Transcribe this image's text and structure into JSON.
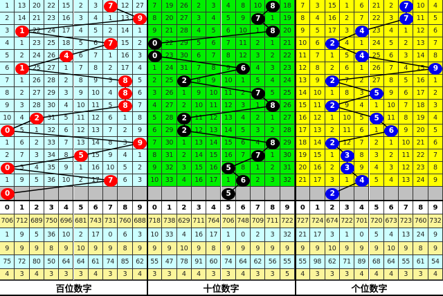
{
  "header_digits": [
    "0",
    "1",
    "2",
    "3",
    "4",
    "5",
    "6",
    "7",
    "8",
    "9"
  ],
  "panels": [
    {
      "label": "百位数字",
      "bg": "#ccffff",
      "ball_color": "#ff0000",
      "rows": [
        [
          1,
          13,
          20,
          22,
          15,
          2,
          3,
          7,
          12,
          27
        ],
        [
          2,
          14,
          21,
          23,
          16,
          3,
          4,
          1,
          13,
          9
        ],
        [
          3,
          1,
          22,
          24,
          17,
          4,
          5,
          2,
          14,
          1
        ],
        [
          4,
          1,
          23,
          25,
          18,
          5,
          6,
          7,
          15,
          2
        ],
        [
          5,
          2,
          24,
          26,
          4,
          6,
          7,
          1,
          16,
          3
        ],
        [
          6,
          1,
          25,
          27,
          1,
          7,
          8,
          2,
          17,
          4
        ],
        [
          7,
          1,
          26,
          28,
          2,
          8,
          9,
          3,
          8,
          5
        ],
        [
          8,
          2,
          27,
          29,
          3,
          9,
          10,
          4,
          8,
          6
        ],
        [
          9,
          3,
          28,
          30,
          4,
          10,
          11,
          5,
          8,
          7
        ],
        [
          10,
          4,
          2,
          31,
          5,
          11,
          12,
          6,
          1,
          8
        ],
        [
          0,
          5,
          1,
          32,
          6,
          12,
          13,
          7,
          2,
          9
        ],
        [
          1,
          6,
          2,
          33,
          7,
          13,
          14,
          8,
          3,
          9
        ],
        [
          2,
          7,
          3,
          34,
          8,
          5,
          15,
          9,
          4,
          1
        ],
        [
          0,
          3,
          4,
          35,
          9,
          1,
          16,
          10,
          5,
          2
        ],
        [
          1,
          9,
          5,
          36,
          10,
          2,
          17,
          7,
          6,
          3
        ]
      ],
      "draws": [
        7,
        9,
        1,
        7,
        4,
        1,
        8,
        8,
        8,
        2,
        0,
        9,
        5,
        0,
        7
      ],
      "forecast": 0,
      "stats": [
        [
          706,
          712,
          689,
          750,
          696,
          681,
          743,
          731,
          760,
          688
        ],
        [
          1,
          9,
          5,
          36,
          10,
          2,
          17,
          0,
          6,
          3
        ],
        [
          9,
          9,
          9,
          8,
          9,
          10,
          9,
          9,
          8,
          9
        ],
        [
          75,
          72,
          80,
          50,
          64,
          64,
          61,
          74,
          85,
          62
        ],
        [
          4,
          3,
          4,
          3,
          3,
          3,
          4,
          3,
          3,
          4
        ]
      ]
    },
    {
      "label": "十位数字",
      "bg": "#00f000",
      "ball_color": "#000000",
      "rows": [
        [
          7,
          19,
          26,
          2,
          3,
          4,
          8,
          10,
          8,
          18
        ],
        [
          8,
          20,
          27,
          3,
          4,
          5,
          9,
          7,
          1,
          19
        ],
        [
          9,
          21,
          28,
          4,
          5,
          6,
          10,
          1,
          8,
          20
        ],
        [
          0,
          22,
          29,
          5,
          6,
          7,
          11,
          2,
          1,
          21
        ],
        [
          0,
          23,
          30,
          6,
          7,
          8,
          12,
          3,
          2,
          22
        ],
        [
          1,
          24,
          31,
          7,
          8,
          9,
          6,
          4,
          3,
          23
        ],
        [
          2,
          25,
          2,
          8,
          9,
          10,
          1,
          5,
          4,
          24
        ],
        [
          3,
          26,
          1,
          9,
          10,
          11,
          2,
          7,
          5,
          25
        ],
        [
          4,
          27,
          2,
          10,
          11,
          12,
          3,
          1,
          8,
          26
        ],
        [
          5,
          28,
          2,
          11,
          12,
          13,
          4,
          2,
          1,
          27
        ],
        [
          6,
          29,
          2,
          12,
          13,
          14,
          5,
          3,
          2,
          28
        ],
        [
          7,
          30,
          1,
          13,
          14,
          15,
          6,
          4,
          8,
          29
        ],
        [
          8,
          31,
          2,
          14,
          15,
          16,
          7,
          7,
          1,
          30
        ],
        [
          9,
          32,
          3,
          15,
          16,
          5,
          8,
          1,
          2,
          31
        ],
        [
          10,
          33,
          4,
          16,
          17,
          1,
          6,
          2,
          3,
          32
        ]
      ],
      "draws": [
        8,
        7,
        8,
        0,
        0,
        6,
        2,
        7,
        8,
        2,
        2,
        8,
        7,
        5,
        6
      ],
      "forecast": 5,
      "stats": [
        [
          718,
          738,
          629,
          711,
          764,
          706,
          748,
          709,
          711,
          722
        ],
        [
          10,
          33,
          4,
          16,
          17,
          1,
          0,
          2,
          3,
          32
        ],
        [
          9,
          9,
          10,
          9,
          8,
          9,
          9,
          9,
          9,
          9
        ],
        [
          55,
          47,
          78,
          91,
          60,
          74,
          64,
          62,
          56,
          55
        ],
        [
          3,
          3,
          4,
          4,
          3,
          3,
          4,
          3,
          3,
          5
        ]
      ]
    },
    {
      "label": "个位数字",
      "bg": "#ffff00",
      "ball_color": "#0000ee",
      "rows": [
        [
          7,
          3,
          15,
          1,
          6,
          21,
          2,
          7,
          10,
          4
        ],
        [
          8,
          4,
          16,
          2,
          7,
          22,
          3,
          7,
          11,
          5
        ],
        [
          9,
          5,
          17,
          3,
          4,
          23,
          4,
          1,
          12,
          6
        ],
        [
          10,
          6,
          2,
          4,
          1,
          24,
          5,
          2,
          13,
          7
        ],
        [
          11,
          7,
          1,
          5,
          4,
          25,
          6,
          3,
          14,
          8
        ],
        [
          12,
          8,
          2,
          6,
          1,
          26,
          7,
          4,
          15,
          9
        ],
        [
          13,
          9,
          2,
          7,
          2,
          27,
          8,
          5,
          16,
          1
        ],
        [
          14,
          10,
          1,
          8,
          3,
          5,
          9,
          6,
          17,
          2
        ],
        [
          15,
          11,
          2,
          9,
          4,
          1,
          10,
          7,
          18,
          3
        ],
        [
          16,
          12,
          1,
          10,
          5,
          5,
          11,
          8,
          19,
          4
        ],
        [
          17,
          13,
          2,
          11,
          6,
          1,
          6,
          9,
          20,
          5
        ],
        [
          18,
          14,
          2,
          12,
          7,
          2,
          1,
          10,
          21,
          6
        ],
        [
          19,
          15,
          1,
          3,
          8,
          3,
          2,
          11,
          22,
          7
        ],
        [
          20,
          16,
          2,
          3,
          9,
          4,
          3,
          12,
          23,
          8
        ],
        [
          21,
          17,
          3,
          1,
          4,
          5,
          4,
          13,
          24,
          9
        ]
      ],
      "draws": [
        7,
        7,
        4,
        2,
        4,
        9,
        2,
        5,
        2,
        5,
        6,
        2,
        3,
        3,
        4
      ],
      "forecast": 2,
      "stats": [
        [
          727,
          724,
          674,
          722,
          701,
          720,
          673,
          723,
          760,
          732
        ],
        [
          21,
          17,
          3,
          1,
          0,
          5,
          4,
          13,
          24,
          9
        ],
        [
          9,
          9,
          10,
          9,
          9,
          9,
          10,
          9,
          8,
          9
        ],
        [
          55,
          98,
          62,
          71,
          89,
          68,
          64,
          55,
          61,
          54
        ],
        [
          4,
          3,
          3,
          3,
          4,
          4,
          4,
          3,
          3,
          4
        ]
      ]
    }
  ]
}
